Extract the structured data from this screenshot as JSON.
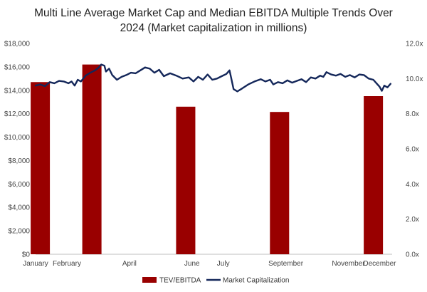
{
  "chart_data": {
    "type": "bar",
    "title_lines": [
      "Multi Line Average Market Cap and Median EBITDA Multiple Trends Over",
      "2024  (Market capitalization in millions)"
    ],
    "xlabel": "",
    "ylabel": "",
    "y2label": "",
    "x_ticks": [
      "January",
      "February",
      "April",
      "June",
      "July",
      "September",
      "November",
      "December"
    ],
    "x_tick_months": [
      1,
      2,
      4,
      6,
      7,
      9,
      11,
      12
    ],
    "x_range_months": [
      1,
      12
    ],
    "y_ticks": [
      "$0",
      "$2,000",
      "$4,000",
      "$6,000",
      "$8,000",
      "$10,000",
      "$12,000",
      "$14,000",
      "$16,000",
      "$18,000"
    ],
    "y_tick_values": [
      0,
      2000,
      4000,
      6000,
      8000,
      10000,
      12000,
      14000,
      16000,
      18000
    ],
    "ylim": [
      0,
      18000
    ],
    "y2_ticks": [
      "0.0x",
      "2.0x",
      "4.0x",
      "6.0x",
      "8.0x",
      "10.0x",
      "12.0x"
    ],
    "y2_tick_values": [
      0,
      2,
      4,
      6,
      8,
      10,
      12
    ],
    "y2lim": [
      0,
      12
    ],
    "grid": false,
    "legend_position": "bottom",
    "series": [
      {
        "name": "TEV/EBITDA",
        "type": "bar",
        "axis": "right",
        "color": "#990000",
        "points": [
          {
            "x": 1.15,
            "y": 9.8
          },
          {
            "x": 2.8,
            "y": 10.8
          },
          {
            "x": 5.8,
            "y": 8.4
          },
          {
            "x": 8.8,
            "y": 8.1
          },
          {
            "x": 11.8,
            "y": 9.0
          }
        ]
      },
      {
        "name": "Market Capitalization",
        "type": "line",
        "axis": "left",
        "color": "#14275a",
        "points": [
          {
            "x": 1.0,
            "y": 14400
          },
          {
            "x": 1.15,
            "y": 14500
          },
          {
            "x": 1.3,
            "y": 14350
          },
          {
            "x": 1.45,
            "y": 14700
          },
          {
            "x": 1.6,
            "y": 14600
          },
          {
            "x": 1.75,
            "y": 14800
          },
          {
            "x": 1.9,
            "y": 14750
          },
          {
            "x": 2.05,
            "y": 14600
          },
          {
            "x": 2.15,
            "y": 14750
          },
          {
            "x": 2.25,
            "y": 14400
          },
          {
            "x": 2.35,
            "y": 14900
          },
          {
            "x": 2.45,
            "y": 14750
          },
          {
            "x": 2.6,
            "y": 15250
          },
          {
            "x": 2.75,
            "y": 15500
          },
          {
            "x": 2.9,
            "y": 15700
          },
          {
            "x": 3.0,
            "y": 15900
          },
          {
            "x": 3.1,
            "y": 16200
          },
          {
            "x": 3.2,
            "y": 16100
          },
          {
            "x": 3.25,
            "y": 15600
          },
          {
            "x": 3.35,
            "y": 15850
          },
          {
            "x": 3.45,
            "y": 15300
          },
          {
            "x": 3.6,
            "y": 14900
          },
          {
            "x": 3.75,
            "y": 15150
          },
          {
            "x": 3.9,
            "y": 15300
          },
          {
            "x": 4.05,
            "y": 15500
          },
          {
            "x": 4.2,
            "y": 15450
          },
          {
            "x": 4.35,
            "y": 15700
          },
          {
            "x": 4.5,
            "y": 15950
          },
          {
            "x": 4.65,
            "y": 15850
          },
          {
            "x": 4.8,
            "y": 15500
          },
          {
            "x": 4.95,
            "y": 15750
          },
          {
            "x": 5.1,
            "y": 15200
          },
          {
            "x": 5.3,
            "y": 15450
          },
          {
            "x": 5.5,
            "y": 15250
          },
          {
            "x": 5.7,
            "y": 15000
          },
          {
            "x": 5.9,
            "y": 15100
          },
          {
            "x": 6.05,
            "y": 14750
          },
          {
            "x": 6.2,
            "y": 15150
          },
          {
            "x": 6.35,
            "y": 14900
          },
          {
            "x": 6.5,
            "y": 15350
          },
          {
            "x": 6.65,
            "y": 14900
          },
          {
            "x": 6.8,
            "y": 15000
          },
          {
            "x": 6.95,
            "y": 15200
          },
          {
            "x": 7.1,
            "y": 15400
          },
          {
            "x": 7.2,
            "y": 15700
          },
          {
            "x": 7.25,
            "y": 15100
          },
          {
            "x": 7.33,
            "y": 14100
          },
          {
            "x": 7.45,
            "y": 13900
          },
          {
            "x": 7.6,
            "y": 14150
          },
          {
            "x": 7.8,
            "y": 14500
          },
          {
            "x": 8.0,
            "y": 14750
          },
          {
            "x": 8.2,
            "y": 14950
          },
          {
            "x": 8.35,
            "y": 14750
          },
          {
            "x": 8.5,
            "y": 14900
          },
          {
            "x": 8.6,
            "y": 14500
          },
          {
            "x": 8.75,
            "y": 14700
          },
          {
            "x": 8.9,
            "y": 14600
          },
          {
            "x": 9.05,
            "y": 14850
          },
          {
            "x": 9.2,
            "y": 14650
          },
          {
            "x": 9.35,
            "y": 14800
          },
          {
            "x": 9.5,
            "y": 14950
          },
          {
            "x": 9.65,
            "y": 14700
          },
          {
            "x": 9.8,
            "y": 15100
          },
          {
            "x": 9.95,
            "y": 15000
          },
          {
            "x": 10.1,
            "y": 15250
          },
          {
            "x": 10.2,
            "y": 15150
          },
          {
            "x": 10.3,
            "y": 15550
          },
          {
            "x": 10.45,
            "y": 15350
          },
          {
            "x": 10.6,
            "y": 15250
          },
          {
            "x": 10.75,
            "y": 15400
          },
          {
            "x": 10.9,
            "y": 15150
          },
          {
            "x": 11.05,
            "y": 15300
          },
          {
            "x": 11.2,
            "y": 15100
          },
          {
            "x": 11.35,
            "y": 15350
          },
          {
            "x": 11.5,
            "y": 15300
          },
          {
            "x": 11.65,
            "y": 15000
          },
          {
            "x": 11.8,
            "y": 14900
          },
          {
            "x": 11.9,
            "y": 14600
          },
          {
            "x": 12.0,
            "y": 14300
          },
          {
            "x": 12.07,
            "y": 13950
          },
          {
            "x": 12.15,
            "y": 14400
          },
          {
            "x": 12.25,
            "y": 14250
          },
          {
            "x": 12.35,
            "y": 14550
          }
        ]
      }
    ]
  }
}
